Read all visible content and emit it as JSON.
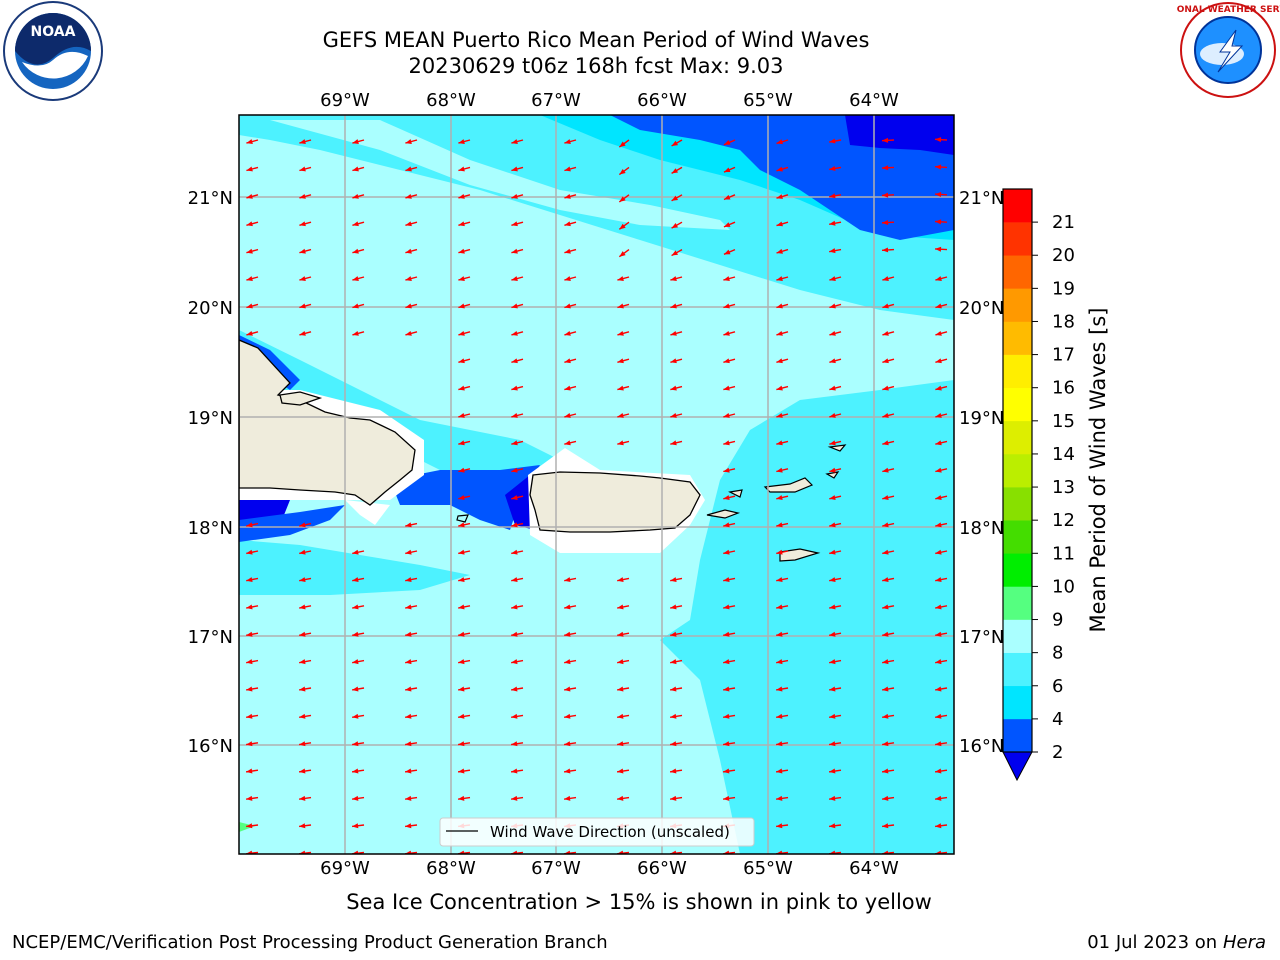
{
  "title": {
    "line1": "GEFS MEAN Puerto Rico Mean Period of Wind Waves",
    "line2": "20230629 t06z 168h fcst   Max: 9.03"
  },
  "map": {
    "lon_labels": [
      "69°W",
      "68°W",
      "67°W",
      "66°W",
      "65°W",
      "64°W"
    ],
    "lat_labels": [
      "21°N",
      "20°N",
      "19°N",
      "18°N",
      "17°N",
      "16°N"
    ],
    "legend_label": "Wind Wave Direction (unscaled)",
    "arrow_color": "#ff0000",
    "land_color": "#efecdc"
  },
  "colorbar": {
    "label": "Mean Period of Wind Waves [s]",
    "ticks": [
      "2",
      "4",
      "6",
      "8",
      "9",
      "10",
      "11",
      "12",
      "13",
      "14",
      "15",
      "16",
      "17",
      "18",
      "19",
      "20",
      "21"
    ],
    "colors": [
      "#0055ff",
      "#00e5ff",
      "#4df2ff",
      "#aaffff",
      "#55ff80",
      "#00ee00",
      "#44dd00",
      "#88e000",
      "#bbee00",
      "#ddee00",
      "#ffff00",
      "#ffee00",
      "#ffbb00",
      "#ff9900",
      "#ff6600",
      "#ff3300",
      "#ff0000"
    ],
    "extend_color": "#0000ee"
  },
  "subcaption": "Sea Ice Concentration > 15% is shown in pink to yellow",
  "footer": {
    "left": "NCEP/EMC/Verification Post Processing Product Generation Branch",
    "date": "01 Jul 2023 on ",
    "host": "Hera"
  },
  "logos": {
    "noaa_text": "NOAA",
    "nws_text": "NATIONAL WEATHER SERVICE"
  }
}
